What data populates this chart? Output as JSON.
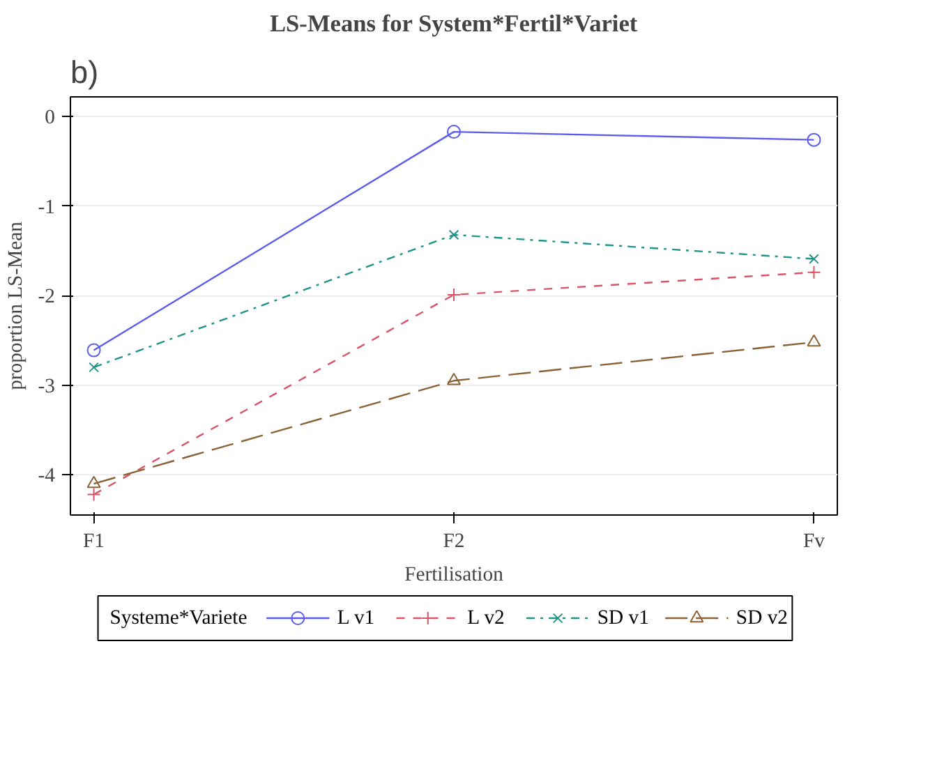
{
  "chart_data": {
    "type": "line",
    "title": "LS-Means for System*Fertil*Variet",
    "xlabel": "Fertilisation",
    "ylabel": "proportion LS-Mean",
    "annotations": [
      "b)"
    ],
    "categories": [
      "F1",
      "F2",
      "Fv"
    ],
    "series": [
      {
        "name": "L v1",
        "color": "#5b5bf0",
        "values": [
          -2.61,
          -0.17,
          -0.26
        ],
        "marker": "circle",
        "line_style": "solid"
      },
      {
        "name": "L v2",
        "color": "#d9546a",
        "values": [
          -4.22,
          -1.99,
          -1.74
        ],
        "marker": "cross",
        "line_style": "dashed"
      },
      {
        "name": "SD v1",
        "color": "#1f9488",
        "values": [
          -2.8,
          -1.32,
          -1.59
        ],
        "marker": "x",
        "line_style": "dashdot"
      },
      {
        "name": "SD v2",
        "color": "#8a6236",
        "values": [
          -4.1,
          -2.95,
          -2.52
        ],
        "marker": "triangle",
        "line_style": "longdash"
      }
    ],
    "ylim": [
      -4.45,
      0.22
    ],
    "yticks": [
      -4,
      -3,
      -2,
      -1,
      0
    ],
    "grid": "y",
    "legend": "bottom",
    "legend_title": "Systeme*Variete"
  }
}
